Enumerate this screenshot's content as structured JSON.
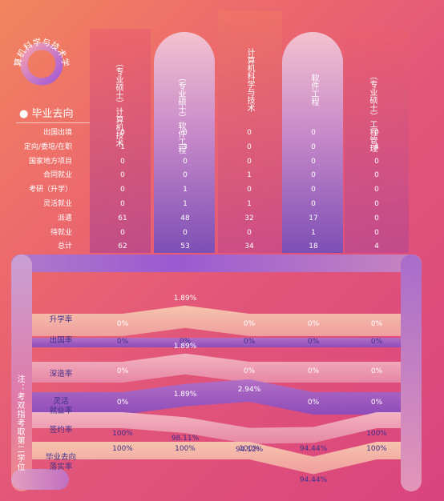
{
  "college": "计算机科学与技术学院",
  "section_title": "毕业去向",
  "note": "注：考双指考取第二学位",
  "colors": {
    "accent_pink": "#e2567a",
    "accent_orange": "#f2855f",
    "label_dark": "#3f2f8a",
    "band_purple": "#9a5ad1"
  },
  "columns": [
    {
      "line1": "计算机技术",
      "line2": "（专业硕士）"
    },
    {
      "line1": "软件工程",
      "line2": "（专业硕士）"
    },
    {
      "line1": "计算机科学与技术",
      "line2": ""
    },
    {
      "line1": "软件工程",
      "line2": ""
    },
    {
      "line1": "工程管理",
      "line2": "（专业硕士）"
    }
  ],
  "table": {
    "rows": [
      {
        "label": "出国出境",
        "values": [
          "0",
          "0",
          "0",
          "0",
          "0"
        ]
      },
      {
        "label": "定向/委培/在职",
        "values": [
          "1",
          "3",
          "0",
          "0",
          "4"
        ]
      },
      {
        "label": "国家地方项目",
        "values": [
          "0",
          "0",
          "0",
          "0",
          "0"
        ]
      },
      {
        "label": "合同就业",
        "values": [
          "0",
          "0",
          "1",
          "0",
          "0"
        ]
      },
      {
        "label": "考研（升学）",
        "values": [
          "0",
          "1",
          "0",
          "0",
          "0"
        ]
      },
      {
        "label": "灵活就业",
        "values": [
          "0",
          "1",
          "1",
          "0",
          "0"
        ]
      },
      {
        "label": "派遣",
        "values": [
          "61",
          "48",
          "32",
          "17",
          "0"
        ]
      },
      {
        "label": "待就业",
        "values": [
          "0",
          "0",
          "0",
          "1",
          "0"
        ]
      },
      {
        "label": "总计",
        "values": [
          "62",
          "53",
          "34",
          "18",
          "4"
        ]
      }
    ]
  },
  "chart_data": {
    "type": "area",
    "categories": [
      "计算机技术（专业硕士）",
      "软件工程（专业硕士）",
      "计算机科学与技术",
      "软件工程",
      "工程管理（专业硕士）"
    ],
    "series": [
      {
        "name": "升学率",
        "values": [
          0,
          1.89,
          0,
          0,
          0
        ],
        "labels": [
          "0%",
          "1.89%",
          "0%",
          "0%",
          "0%"
        ]
      },
      {
        "name": "出国率",
        "values": [
          0,
          0,
          0,
          0,
          0
        ],
        "labels": [
          "0%",
          "0%",
          "0%",
          "0%",
          "0%"
        ]
      },
      {
        "name": "深造率",
        "values": [
          0,
          1.89,
          0,
          0,
          0
        ],
        "labels": [
          "0%",
          "1.89%",
          "0%",
          "0%",
          "0%"
        ]
      },
      {
        "name": "灵活就业率",
        "values": [
          0,
          1.89,
          2.94,
          0,
          0
        ],
        "labels": [
          "0%",
          "1.89%",
          "2.94%",
          "0%",
          "0%"
        ]
      },
      {
        "name": "签约率",
        "values": [
          100,
          98.11,
          94.12,
          94.44,
          100
        ],
        "labels": [
          "100%",
          "98.11%",
          "94.12%",
          "94.44%",
          "100%"
        ]
      },
      {
        "name": "毕业去向落实率",
        "values": [
          100,
          100,
          100,
          94.44,
          100
        ],
        "labels": [
          "100%",
          "100%",
          "100%",
          "94.44%",
          "100%"
        ]
      }
    ]
  }
}
